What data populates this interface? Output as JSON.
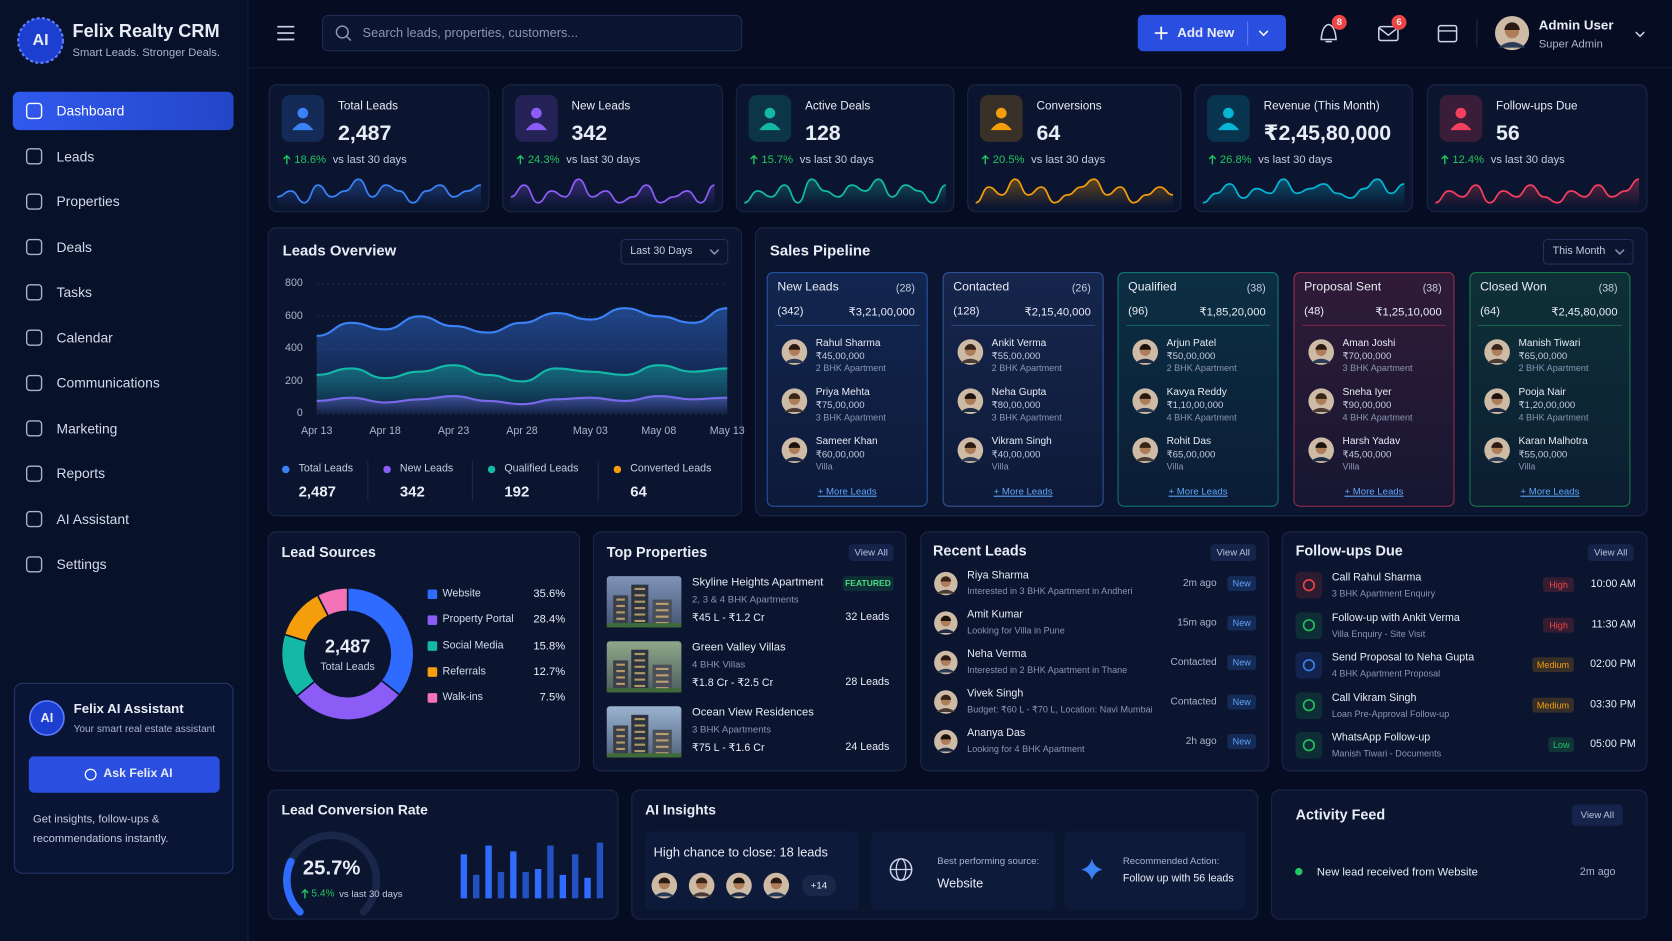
{
  "brand": {
    "logo": "AI",
    "name": "Felix Realty CRM",
    "tagline": "Smart Leads. Stronger Deals."
  },
  "nav": [
    "Dashboard",
    "Leads",
    "Properties",
    "Deals",
    "Tasks",
    "Calendar",
    "Communications",
    "Marketing",
    "Reports",
    "AI Assistant",
    "Settings"
  ],
  "assistant": {
    "logo": "AI",
    "title": "Felix AI Assistant",
    "subtitle": "Your smart real estate assistant",
    "button": "Ask Felix AI",
    "text": "Get insights, follow-ups & recommendations instantly."
  },
  "header": {
    "search": "Search leads, properties, customers...",
    "add": "Add New",
    "notifications": 8,
    "messages": 6,
    "user": {
      "name": "Admin User",
      "role": "Super Admin"
    }
  },
  "kpis": [
    {
      "label": "Total Leads",
      "value": "2,487",
      "change": "18.6%",
      "compare": "vs last 30 days",
      "color": "#3b82f6",
      "trend": [
        4,
        5,
        3,
        6,
        4,
        5,
        7,
        4,
        6,
        5,
        3,
        5,
        6,
        4,
        5,
        6
      ]
    },
    {
      "label": "New Leads",
      "value": "342",
      "change": "24.3%",
      "compare": "vs last 30 days",
      "color": "#8b5cf6",
      "trend": [
        5,
        7,
        4,
        6,
        5,
        8,
        5,
        6,
        4,
        5,
        7,
        4,
        5,
        6,
        4,
        7
      ]
    },
    {
      "label": "Active Deals",
      "value": "128",
      "change": "15.7%",
      "compare": "vs last 30 days",
      "color": "#14b8a6",
      "trend": [
        3,
        5,
        4,
        6,
        3,
        7,
        5,
        4,
        6,
        5,
        7,
        4,
        6,
        5,
        3,
        6
      ]
    },
    {
      "label": "Conversions",
      "value": "64",
      "change": "20.5%",
      "compare": "vs last 30 days",
      "color": "#f59e0b",
      "trend": [
        4,
        6,
        5,
        7,
        5,
        6,
        4,
        5,
        6,
        7,
        5,
        6,
        4,
        5,
        6,
        5
      ]
    },
    {
      "label": "Revenue (This Month)",
      "value": "₹2,45,80,000",
      "change": "26.8%",
      "compare": "vs last 30 days",
      "color": "#06b6d4",
      "trend": [
        3,
        5,
        7,
        4,
        6,
        5,
        8,
        5,
        6,
        7,
        5,
        4,
        6,
        8,
        5,
        7
      ]
    },
    {
      "label": "Follow-ups Due",
      "value": "56",
      "change": "12.4%",
      "compare": "vs last 30 days",
      "color": "#f43f5e",
      "trend": [
        4,
        6,
        5,
        7,
        4,
        6,
        5,
        7,
        5,
        4,
        6,
        5,
        7,
        5,
        6,
        8
      ]
    }
  ],
  "chart_data": [
    {
      "type": "line",
      "title": "Leads Overview",
      "filter": "Last 30 Days",
      "categories": [
        "Apr 13",
        null,
        "Apr 18",
        null,
        "Apr 23",
        null,
        "Apr 28",
        null,
        "May 03",
        null,
        "May 08",
        null,
        "May 13"
      ],
      "series": [
        {
          "name": "Total Leads",
          "color": "#3b82f6",
          "total": "2,487",
          "values": [
            480,
            560,
            520,
            600,
            540,
            500,
            560,
            620,
            580,
            650,
            600,
            560,
            650
          ]
        },
        {
          "name": "New Leads",
          "color": "#8b5cf6",
          "total": "342",
          "values": [
            80,
            100,
            70,
            90,
            110,
            80,
            60,
            90,
            100,
            80,
            110,
            90,
            100
          ]
        },
        {
          "name": "Qualified Leads",
          "color": "#14b8a6",
          "total": "192",
          "values": [
            240,
            280,
            220,
            260,
            300,
            240,
            200,
            280,
            260,
            240,
            300,
            260,
            280
          ]
        },
        {
          "name": "Converted Leads",
          "color": "#f59e0b",
          "total": "64"
        }
      ],
      "ylim": [
        0,
        800
      ],
      "yticks": [
        0,
        200,
        400,
        600,
        800
      ],
      "grid": true,
      "legend": "bottom"
    },
    {
      "type": "pie",
      "title": "Lead Sources",
      "center_value": "2,487",
      "center_label": "Total Leads",
      "categories": [
        "Website",
        "Property Portal",
        "Social Media",
        "Referrals",
        "Walk-ins"
      ],
      "values": [
        35.6,
        28.4,
        15.8,
        12.7,
        7.5
      ],
      "value_labels": [
        "35.6%",
        "28.4%",
        "15.8%",
        "12.7%",
        "7.5%"
      ],
      "colors": [
        "#2f6bff",
        "#8b5cf6",
        "#14b8a6",
        "#f59e0b",
        "#f472b6"
      ],
      "legend": "right"
    },
    {
      "type": "bar",
      "title": "Lead Conversion Rate",
      "gauge": {
        "value": 25.7,
        "label": "25.7%",
        "lim": [
          0,
          100
        ]
      },
      "change": "5.4%",
      "compare": "vs last 30 days",
      "categories": [
        null,
        null,
        null,
        null,
        null,
        null,
        null,
        null,
        null,
        null,
        null,
        null
      ],
      "values": [
        75,
        40,
        90,
        45,
        80,
        45,
        50,
        90,
        40,
        75,
        35,
        95
      ],
      "ylim": [
        0,
        100
      ],
      "color": "#2f6bff"
    }
  ],
  "pipeline": {
    "title": "Sales Pipeline",
    "filter": "This Month",
    "stages": [
      {
        "name": "New Leads",
        "badge": "(28)",
        "count": "(342)",
        "amount": "₹3,21,00,000",
        "color": "#3b82f6",
        "more": "+ More Leads",
        "leads": [
          {
            "name": "Rahul Sharma",
            "amount": "₹45,00,000",
            "type": "2 BHK Apartment"
          },
          {
            "name": "Priya Mehta",
            "amount": "₹75,00,000",
            "type": "3 BHK Apartment"
          },
          {
            "name": "Sameer Khan",
            "amount": "₹60,00,000",
            "type": "Villa"
          }
        ]
      },
      {
        "name": "Contacted",
        "badge": "(26)",
        "count": "(128)",
        "amount": "₹2,15,40,000",
        "color": "#4f7fe0",
        "more": "+ More Leads",
        "leads": [
          {
            "name": "Ankit Verma",
            "amount": "₹55,00,000",
            "type": "2 BHK Apartment"
          },
          {
            "name": "Neha Gupta",
            "amount": "₹80,00,000",
            "type": "3 BHK Apartment"
          },
          {
            "name": "Vikram Singh",
            "amount": "₹40,00,000",
            "type": "Villa"
          }
        ]
      },
      {
        "name": "Qualified",
        "badge": "(38)",
        "count": "(96)",
        "amount": "₹1,85,20,000",
        "color": "#14b8a6",
        "more": "+ More Leads",
        "leads": [
          {
            "name": "Arjun Patel",
            "amount": "₹50,00,000",
            "type": "2 BHK Apartment"
          },
          {
            "name": "Kavya Reddy",
            "amount": "₹1,10,00,000",
            "type": "4 BHK Apartment"
          },
          {
            "name": "Rohit Das",
            "amount": "₹65,00,000",
            "type": "Villa"
          }
        ]
      },
      {
        "name": "Proposal Sent",
        "badge": "(38)",
        "count": "(48)",
        "amount": "₹1,25,10,000",
        "color": "#f43f5e",
        "more": "+ More Leads",
        "leads": [
          {
            "name": "Aman Joshi",
            "amount": "₹70,00,000",
            "type": "3 BHK Apartment"
          },
          {
            "name": "Sneha Iyer",
            "amount": "₹90,00,000",
            "type": "4 BHK Apartment"
          },
          {
            "name": "Harsh Yadav",
            "amount": "₹45,00,000",
            "type": "Villa"
          }
        ]
      },
      {
        "name": "Closed Won",
        "badge": "(38)",
        "count": "(64)",
        "amount": "₹2,45,80,000",
        "color": "#22c55e",
        "more": "+ More Leads",
        "leads": [
          {
            "name": "Manish Tiwari",
            "amount": "₹65,00,000",
            "type": "2 BHK Apartment"
          },
          {
            "name": "Pooja Nair",
            "amount": "₹1,20,00,000",
            "type": "4 BHK Apartment"
          },
          {
            "name": "Karan Malhotra",
            "amount": "₹55,00,000",
            "type": "Villa"
          }
        ]
      }
    ]
  },
  "top_properties": {
    "title": "Top Properties",
    "view_all": "View All",
    "items": [
      {
        "name": "Skyline Heights Apartment",
        "badge": "FEATURED",
        "detail": "2, 3 & 4 BHK Apartments",
        "price": "₹45 L - ₹1.2 Cr",
        "leads": "32 Leads"
      },
      {
        "name": "Green Valley Villas",
        "detail": "4 BHK Villas",
        "price": "₹1.8 Cr - ₹2.5 Cr",
        "leads": "28 Leads"
      },
      {
        "name": "Ocean View Residences",
        "detail": "3 BHK Apartments",
        "price": "₹75 L - ₹1.6 Cr",
        "leads": "24 Leads"
      }
    ]
  },
  "recent_leads": {
    "title": "Recent Leads",
    "view_all": "View All",
    "items": [
      {
        "name": "Riya Sharma",
        "note": "Interested in 3 BHK Apartment in Andheri",
        "time": "2m ago",
        "badge": "New"
      },
      {
        "name": "Amit Kumar",
        "note": "Looking for Villa in Pune",
        "time": "15m ago",
        "badge": "New"
      },
      {
        "name": "Neha Verma",
        "note": "Interested in 2 BHK Apartment in Thane",
        "time": "Contacted",
        "badge": "New"
      },
      {
        "name": "Vivek Singh",
        "note": "Budget: ₹60 L - ₹70 L, Location: Navi Mumbai",
        "time": "Contacted",
        "badge": "New"
      },
      {
        "name": "Ananya Das",
        "note": "Looking for 4 BHK Apartment",
        "time": "2h ago",
        "badge": "New"
      }
    ]
  },
  "followups": {
    "title": "Follow-ups Due",
    "view_all": "View All",
    "items": [
      {
        "title": "Call Rahul Sharma",
        "sub": "3 BHK Apartment Enquiry",
        "priority": "High",
        "priority_color": "#ef4444",
        "time": "10:00 AM",
        "color": "#ef4444"
      },
      {
        "title": "Follow-up with Ankit Verma",
        "sub": "Villa Enquiry - Site Visit",
        "priority": "High",
        "priority_color": "#ef4444",
        "time": "11:30 AM",
        "color": "#22c55e"
      },
      {
        "title": "Send Proposal to Neha Gupta",
        "sub": "4 BHK Apartment Proposal",
        "priority": "Medium",
        "priority_color": "#f59e0b",
        "time": "02:00 PM",
        "color": "#3b82f6"
      },
      {
        "title": "Call Vikram Singh",
        "sub": "Loan Pre-Approval Follow-up",
        "priority": "Medium",
        "priority_color": "#f59e0b",
        "time": "03:30 PM",
        "color": "#22c55e"
      },
      {
        "title": "WhatsApp Follow-up",
        "sub": "Manish Tiwari - Documents",
        "priority": "Low",
        "priority_color": "#22c55e",
        "time": "05:00 PM",
        "color": "#22c55e"
      }
    ]
  },
  "ai_insights": {
    "title": "AI Insights",
    "chance": "High chance to close: 18 leads",
    "more": "+14",
    "source_label": "Best performing source:",
    "source": "Website",
    "action_label": "Recommended Action:",
    "action": "Follow up with 56 leads"
  },
  "activity": {
    "title": "Activity Feed",
    "view_all": "View All",
    "items": [
      {
        "text": "New lead received from Website",
        "time": "2m ago"
      }
    ]
  }
}
